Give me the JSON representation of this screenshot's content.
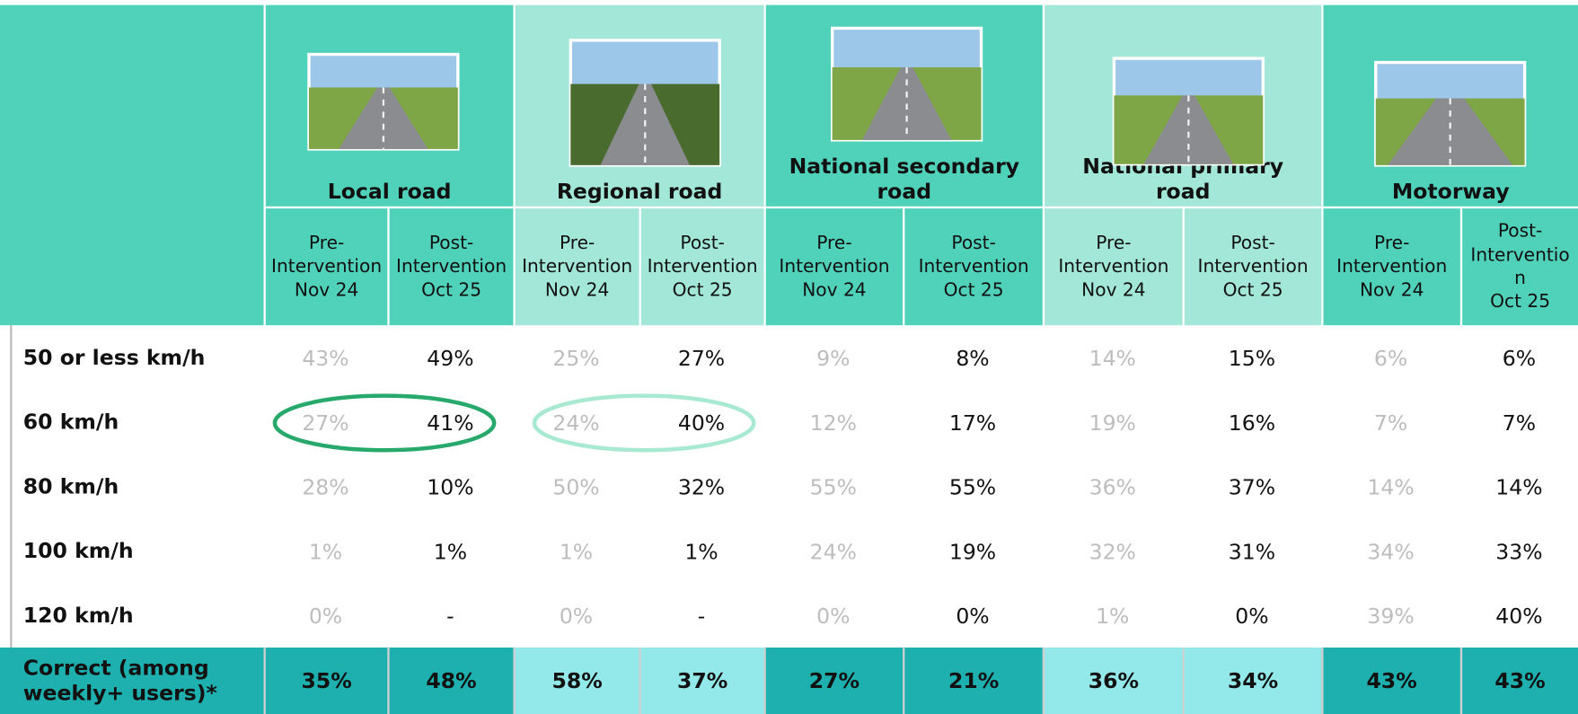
{
  "columns": [
    {
      "title": "Local road",
      "sub": [
        {
          "label": "Pre-Intervention",
          "date": "Nov 24"
        },
        {
          "label": "Post-Intervention",
          "date": "Oct 25"
        }
      ]
    },
    {
      "title": "Regional road",
      "sub": [
        {
          "label": "Pre-Intervention",
          "date": "Nov 24"
        },
        {
          "label": "Post-Intervention",
          "date": "Oct 25"
        }
      ]
    },
    {
      "title": "National secondary road",
      "sub": [
        {
          "label": "Pre-Intervention",
          "date": "Nov 24"
        },
        {
          "label": "Post-Intervention",
          "date": "Oct 25"
        }
      ]
    },
    {
      "title": "National primary road",
      "sub": [
        {
          "label": "Pre-Intervention",
          "date": "Nov 24"
        },
        {
          "label": "Post-Intervention",
          "date": "Oct 25"
        }
      ]
    },
    {
      "title": "Motorway",
      "sub": [
        {
          "label": "Pre-Intervention",
          "date": "Nov 24"
        },
        {
          "label": "Post-Intervention",
          "date": "Oct 25"
        }
      ]
    }
  ],
  "rows": [
    {
      "label": "50 or less km/h",
      "values": [
        "43%",
        "49%",
        "25%",
        "27%",
        "9%",
        "8%",
        "14%",
        "15%",
        "6%",
        "6%"
      ]
    },
    {
      "label": "60 km/h",
      "values": [
        "27%",
        "41%",
        "24%",
        "40%",
        "12%",
        "17%",
        "19%",
        "16%",
        "7%",
        "7%"
      ]
    },
    {
      "label": "80 km/h",
      "values": [
        "28%",
        "10%",
        "50%",
        "32%",
        "55%",
        "55%",
        "36%",
        "37%",
        "14%",
        "14%"
      ]
    },
    {
      "label": "100 km/h",
      "values": [
        "1%",
        "1%",
        "1%",
        "1%",
        "24%",
        "19%",
        "32%",
        "31%",
        "34%",
        "33%"
      ]
    },
    {
      "label": "120 km/h",
      "values": [
        "0%",
        "-",
        "0%",
        "-",
        "0%",
        "0%",
        "1%",
        "0%",
        "39%",
        "40%"
      ]
    },
    {
      "label": "Correct (among weekly+ users)*",
      "values": [
        "35%",
        "48%",
        "58%",
        "37%",
        "27%",
        "21%",
        "36%",
        "34%",
        "43%",
        "43%"
      ]
    }
  ]
}
